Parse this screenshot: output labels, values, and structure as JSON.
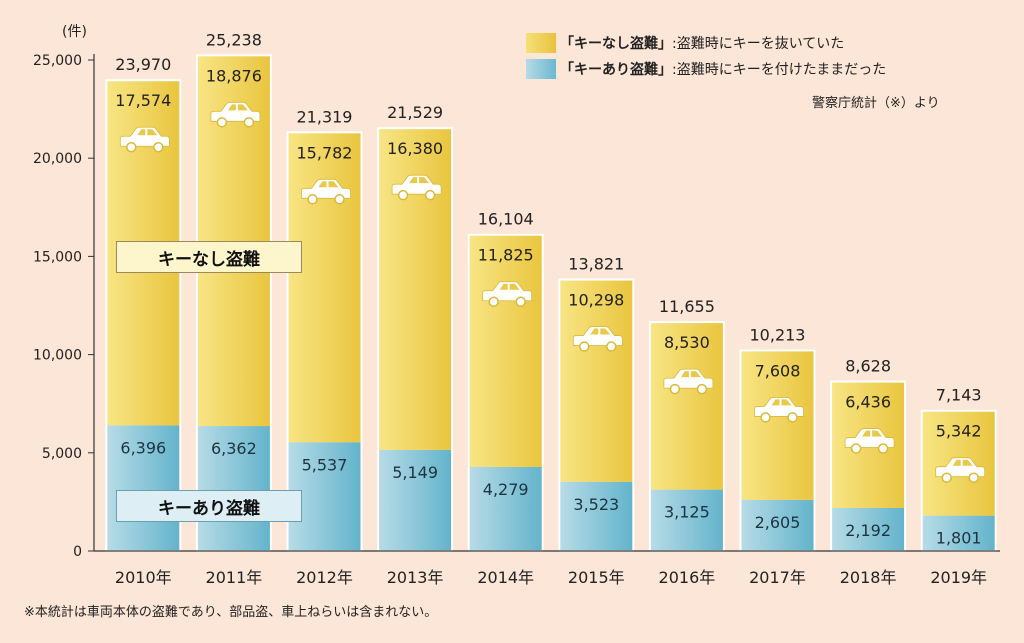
{
  "chart_data": {
    "type": "bar",
    "stacked": true,
    "unit_label": "(件)",
    "categories": [
      "2010年",
      "2011年",
      "2012年",
      "2013年",
      "2014年",
      "2015年",
      "2016年",
      "2017年",
      "2018年",
      "2019年"
    ],
    "series": [
      {
        "name": "キーあり盗難",
        "color": "#7fc1d4",
        "values": [
          6396,
          6362,
          5537,
          5149,
          4279,
          3523,
          3125,
          2605,
          2192,
          1801
        ]
      },
      {
        "name": "キーなし盗難",
        "color": "#f2d45a",
        "values": [
          17574,
          18876,
          15782,
          16380,
          11825,
          10298,
          8530,
          7608,
          6436,
          5342
        ]
      }
    ],
    "totals": [
      23970,
      25238,
      21319,
      21529,
      16104,
      13821,
      11655,
      10213,
      8628,
      7143
    ],
    "ylim": [
      0,
      25000
    ],
    "yticks": [
      0,
      5000,
      10000,
      15000,
      20000,
      25000
    ],
    "grid": false
  },
  "legend": {
    "nashi_key": "「キーなし盗難」",
    "nashi_desc": ":盗難時にキーを抜いていた",
    "ari_key": "「キーあり盗難」",
    "ari_desc": ":盗難時にキーを付けたままだった"
  },
  "labels": {
    "nashi_box": "キーなし盗難",
    "ari_box": "キーあり盗難"
  },
  "source": "警察庁統計（※）より",
  "footnote": "※本統計は車両本体の盗難であり、部品盗、車上ねらいは含まれない。",
  "icons": {
    "bar_icon": "car-icon"
  }
}
